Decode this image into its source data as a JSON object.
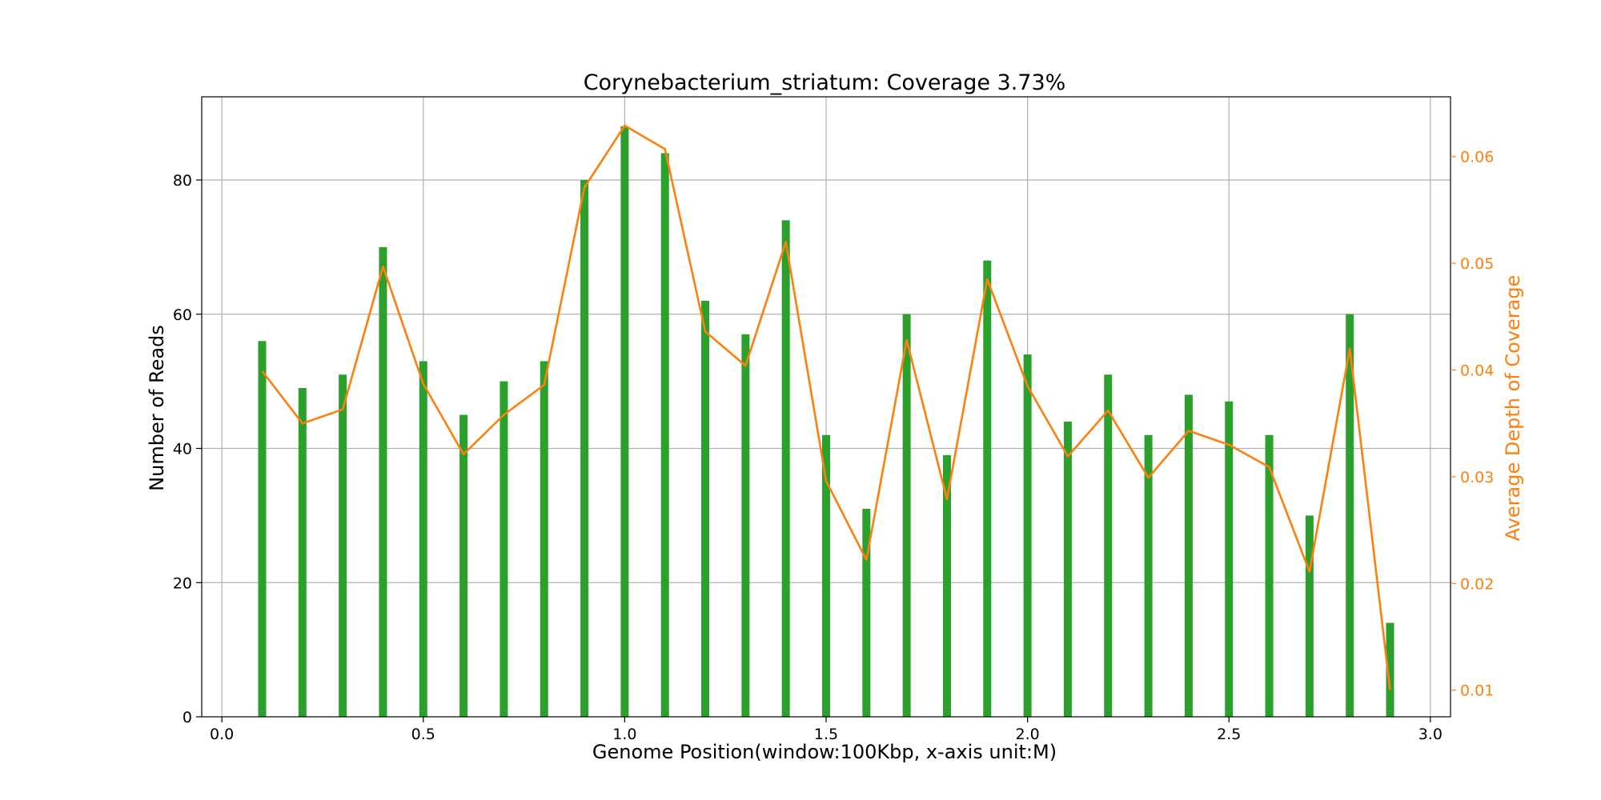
{
  "chart_data": {
    "type": "bar",
    "title": "Corynebacterium_striatum: Coverage 3.73%",
    "xlabel": "Genome Position(window:100Kbp, x-axis unit:M)",
    "ylabel": "Number of Reads",
    "y2label": "Average Depth of Coverage",
    "xlim": [
      -0.05,
      3.05
    ],
    "ylim": [
      0,
      92.4
    ],
    "y2lim": [
      0.0075,
      0.0656
    ],
    "xticks": [
      0.0,
      0.5,
      1.0,
      1.5,
      2.0,
      2.5,
      3.0
    ],
    "xtick_labels": [
      "0.0",
      "0.5",
      "1.0",
      "1.5",
      "2.0",
      "2.5",
      "3.0"
    ],
    "yticks": [
      0,
      20,
      40,
      60,
      80
    ],
    "ytick_labels": [
      "0",
      "20",
      "40",
      "60",
      "80"
    ],
    "y2ticks": [
      0.01,
      0.02,
      0.03,
      0.04,
      0.05,
      0.06
    ],
    "y2tick_labels": [
      "0.01",
      "0.02",
      "0.03",
      "0.04",
      "0.05",
      "0.06"
    ],
    "grid": true,
    "x": [
      0.1,
      0.2,
      0.3,
      0.4,
      0.5,
      0.6,
      0.7,
      0.8,
      0.9,
      1.0,
      1.1,
      1.2,
      1.3,
      1.4,
      1.5,
      1.6,
      1.7,
      1.8,
      1.9,
      2.0,
      2.1,
      2.2,
      2.3,
      2.4,
      2.5,
      2.6,
      2.7,
      2.8,
      2.9
    ],
    "series": [
      {
        "type": "bar",
        "axis": "left",
        "color": "#2ca02c",
        "values": [
          56,
          49,
          51,
          70,
          53,
          45,
          50,
          53,
          80,
          88,
          84,
          62,
          57,
          74,
          42,
          31,
          60,
          39,
          68,
          54,
          44,
          51,
          42,
          48,
          47,
          42,
          30,
          60,
          14
        ]
      },
      {
        "type": "line",
        "axis": "right",
        "color": "#ff7f0e",
        "values": [
          0.0399,
          0.035,
          0.0363,
          0.0497,
          0.0387,
          0.0321,
          0.0358,
          0.0386,
          0.0571,
          0.0629,
          0.0607,
          0.0436,
          0.0404,
          0.052,
          0.0296,
          0.0222,
          0.0428,
          0.0279,
          0.0485,
          0.0385,
          0.0319,
          0.0362,
          0.0299,
          0.0343,
          0.033,
          0.0309,
          0.0211,
          0.042,
          0.01
        ]
      }
    ]
  }
}
